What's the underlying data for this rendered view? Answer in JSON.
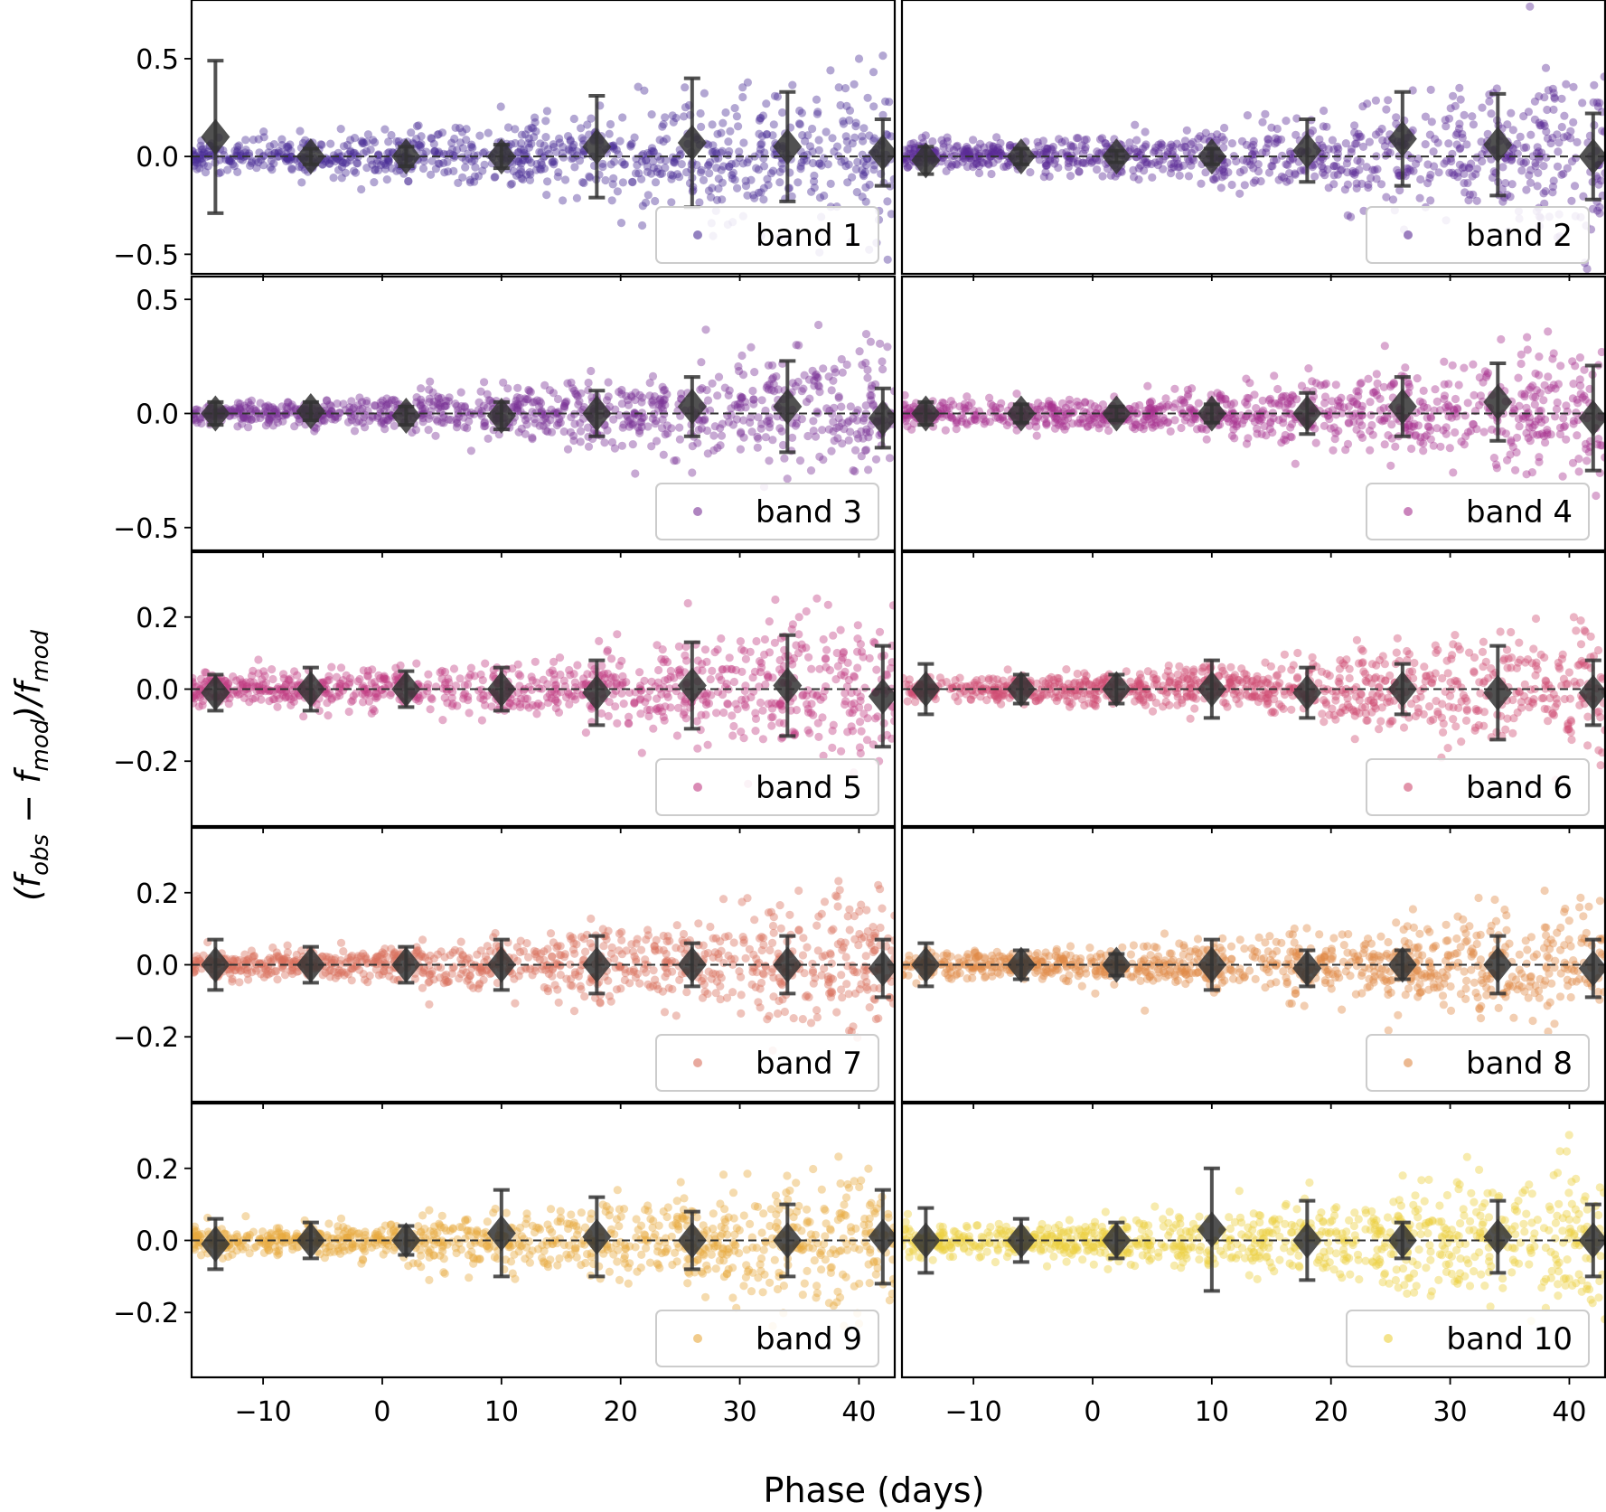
{
  "chart_data": {
    "type": "scatter",
    "grid": false,
    "xlabel": "Phase (days)",
    "ylabel_parts": {
      "open": "(",
      "f_obs": "f",
      "sub_obs": "obs",
      "minus": " − ",
      "f_mod": "f",
      "sub_mod": "mod",
      "close_div": ")/",
      "f_mod2": "f",
      "sub_mod2": "mod"
    },
    "xlim": [
      -16,
      43
    ],
    "xticks": [
      -10,
      0,
      10,
      20,
      30,
      40
    ],
    "xtick_labels": [
      "−10",
      "0",
      "10",
      "20",
      "30",
      "40"
    ],
    "legend_location": "lower right",
    "binned_phases": [
      -14,
      -6,
      2,
      10,
      18,
      26,
      34,
      42
    ],
    "panels": [
      {
        "label": "band 1",
        "color": "#4b2d96",
        "ylim": [
          -0.6,
          0.8
        ],
        "yticks": [
          0.5,
          0.0,
          -0.5
        ],
        "ytick_labels": [
          "0.5",
          "0.0",
          "−0.5"
        ],
        "spread": 0.12,
        "binned_means": [
          0.1,
          0.0,
          0.0,
          0.0,
          0.05,
          0.07,
          0.05,
          0.02
        ],
        "binned_errors": [
          0.39,
          0.04,
          0.05,
          0.06,
          0.26,
          0.33,
          0.28,
          0.17
        ]
      },
      {
        "label": "band 2",
        "color": "#5a2a95",
        "ylim": [
          -0.6,
          0.8
        ],
        "yticks": [],
        "ytick_labels": [],
        "spread": 0.11,
        "binned_means": [
          -0.02,
          0.0,
          0.0,
          0.0,
          0.03,
          0.09,
          0.06,
          0.0
        ],
        "binned_errors": [
          0.07,
          0.04,
          0.03,
          0.04,
          0.16,
          0.24,
          0.26,
          0.22
        ]
      },
      {
        "label": "band 3",
        "color": "#7a3296",
        "ylim": [
          -0.6,
          0.6
        ],
        "yticks": [
          0.5,
          0.0,
          -0.5
        ],
        "ytick_labels": [
          "0.5",
          "0.0",
          "−0.5"
        ],
        "spread": 0.08,
        "binned_means": [
          0.0,
          0.01,
          -0.01,
          -0.01,
          0.0,
          0.03,
          0.03,
          -0.02
        ],
        "binned_errors": [
          0.05,
          0.04,
          0.04,
          0.06,
          0.1,
          0.13,
          0.2,
          0.13
        ]
      },
      {
        "label": "band 4",
        "color": "#a6328f",
        "ylim": [
          -0.6,
          0.6
        ],
        "yticks": [],
        "ytick_labels": [],
        "spread": 0.08,
        "binned_means": [
          0.0,
          0.0,
          0.0,
          0.0,
          0.0,
          0.03,
          0.05,
          -0.02
        ],
        "binned_errors": [
          0.05,
          0.04,
          0.03,
          0.04,
          0.09,
          0.13,
          0.17,
          0.23
        ]
      },
      {
        "label": "band 5",
        "color": "#c13e84",
        "ylim": [
          -0.38,
          0.38
        ],
        "yticks": [
          0.2,
          0.0,
          -0.2
        ],
        "ytick_labels": [
          "0.2",
          "0.0",
          "−0.2"
        ],
        "spread": 0.06,
        "binned_means": [
          -0.01,
          0.0,
          0.0,
          0.0,
          -0.01,
          0.01,
          0.01,
          -0.02
        ],
        "binned_errors": [
          0.05,
          0.06,
          0.05,
          0.06,
          0.09,
          0.12,
          0.14,
          0.14
        ]
      },
      {
        "label": "band 6",
        "color": "#cf4c72",
        "ylim": [
          -0.38,
          0.38
        ],
        "yticks": [],
        "ytick_labels": [],
        "spread": 0.05,
        "binned_means": [
          0.0,
          0.0,
          0.0,
          0.0,
          -0.01,
          0.0,
          -0.01,
          -0.01
        ],
        "binned_errors": [
          0.07,
          0.04,
          0.04,
          0.08,
          0.07,
          0.07,
          0.13,
          0.09
        ]
      },
      {
        "label": "band 7",
        "color": "#d9705e",
        "ylim": [
          -0.38,
          0.38
        ],
        "yticks": [
          0.2,
          0.0,
          -0.2
        ],
        "ytick_labels": [
          "0.2",
          "0.0",
          "−0.2"
        ],
        "spread": 0.055,
        "binned_means": [
          0.0,
          0.0,
          0.0,
          0.0,
          0.0,
          0.0,
          0.0,
          -0.01
        ],
        "binned_errors": [
          0.07,
          0.05,
          0.05,
          0.07,
          0.08,
          0.06,
          0.08,
          0.08
        ]
      },
      {
        "label": "band 8",
        "color": "#df8a48",
        "ylim": [
          -0.38,
          0.38
        ],
        "yticks": [],
        "ytick_labels": [],
        "spread": 0.05,
        "binned_means": [
          0.0,
          0.0,
          0.0,
          0.0,
          -0.01,
          0.0,
          0.0,
          -0.01
        ],
        "binned_errors": [
          0.06,
          0.04,
          0.03,
          0.07,
          0.05,
          0.04,
          0.08,
          0.08
        ]
      },
      {
        "label": "band 9",
        "color": "#e8a93e",
        "ylim": [
          -0.38,
          0.38
        ],
        "yticks": [
          0.2,
          0.0,
          -0.2
        ],
        "ytick_labels": [
          "0.2",
          "0.0",
          "−0.2"
        ],
        "spread": 0.055,
        "binned_means": [
          -0.01,
          0.0,
          0.0,
          0.02,
          0.01,
          0.0,
          0.0,
          0.01
        ],
        "binned_errors": [
          0.07,
          0.05,
          0.04,
          0.12,
          0.11,
          0.08,
          0.1,
          0.13
        ]
      },
      {
        "label": "band 10",
        "color": "#ecd03e",
        "ylim": [
          -0.38,
          0.38
        ],
        "yticks": [],
        "ytick_labels": [],
        "spread": 0.06,
        "binned_means": [
          0.0,
          0.0,
          0.0,
          0.03,
          0.0,
          0.0,
          0.01,
          0.0
        ],
        "binned_errors": [
          0.09,
          0.06,
          0.05,
          0.17,
          0.11,
          0.05,
          0.1,
          0.1
        ]
      }
    ]
  }
}
